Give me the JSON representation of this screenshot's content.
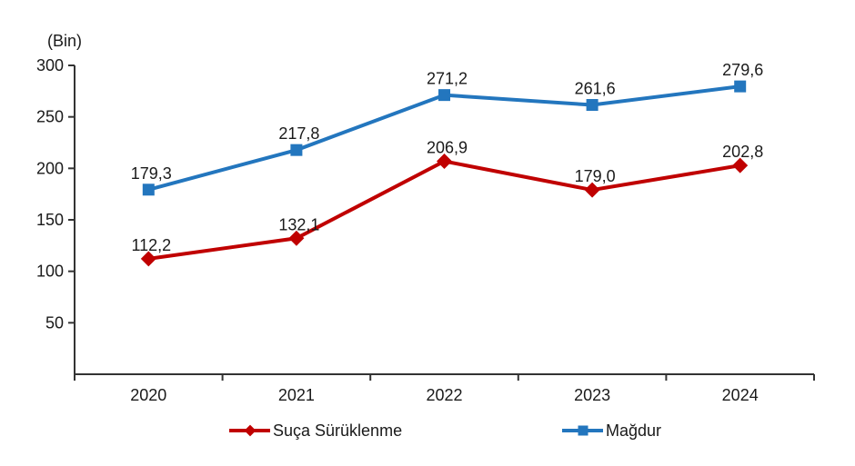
{
  "chart_data": {
    "type": "line",
    "title": "",
    "unit_label": "(Bin)",
    "xlabel": "",
    "ylabel": "(Bin)",
    "categories": [
      "2020",
      "2021",
      "2022",
      "2023",
      "2024"
    ],
    "series": [
      {
        "name": "Suça Sürüklenme",
        "color": "#c00000",
        "marker": "diamond",
        "values": [
          112.2,
          132.1,
          206.9,
          179.0,
          202.8
        ],
        "labels": [
          "112,2",
          "132,1",
          "206,9",
          "179,0",
          "202,8"
        ]
      },
      {
        "name": "Mağdur",
        "color": "#2376be",
        "marker": "square",
        "values": [
          179.3,
          217.8,
          271.2,
          261.6,
          279.6
        ],
        "labels": [
          "179,3",
          "217,8",
          "271,2",
          "261,6",
          "279,6"
        ]
      }
    ],
    "ylim": [
      0,
      300
    ],
    "yticks": [
      50,
      100,
      150,
      200,
      250,
      300
    ],
    "grid": false,
    "legend_position": "bottom"
  },
  "colors": {
    "axis": "#333333",
    "text": "#1a1a1a"
  }
}
